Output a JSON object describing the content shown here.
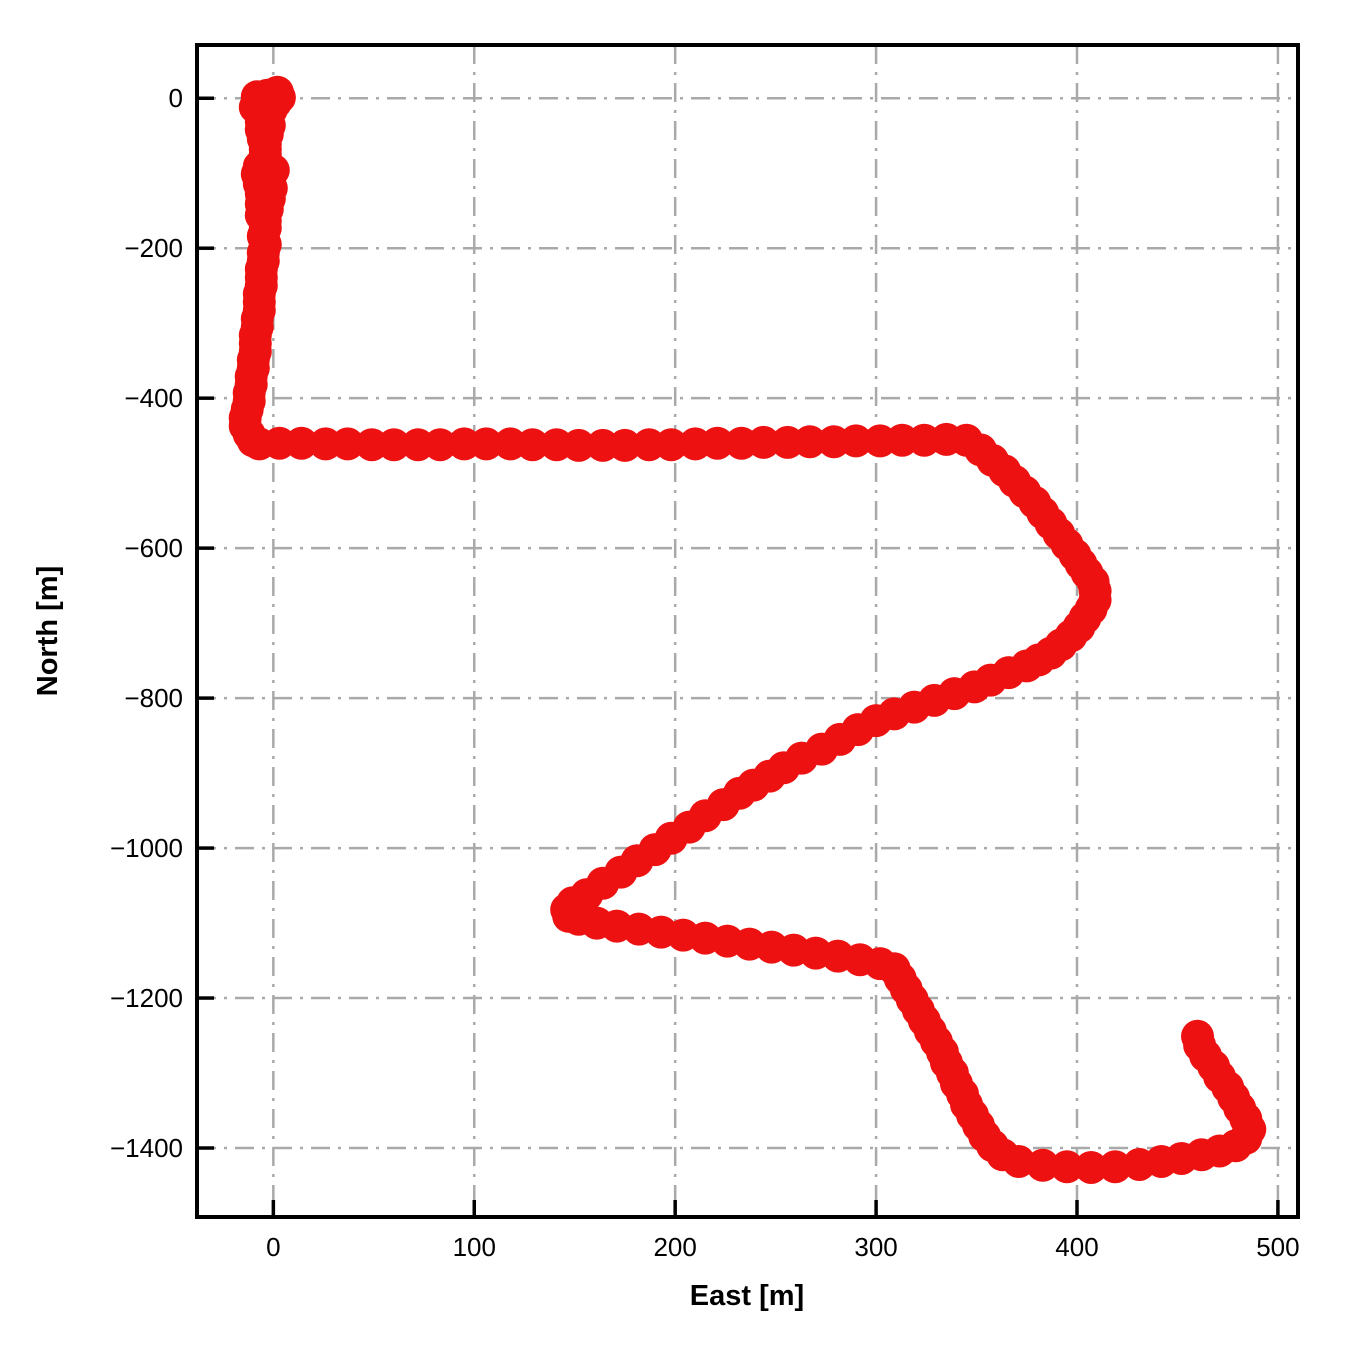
{
  "figure": {
    "background": "#ffffff"
  },
  "chart_data": {
    "type": "scatter",
    "title": "",
    "xlabel": "East [m]",
    "ylabel": "North [m]",
    "x_ticks": [
      0,
      100,
      200,
      300,
      400,
      500
    ],
    "y_ticks": [
      0,
      -200,
      -400,
      -600,
      -800,
      -1000,
      -1200,
      -1400
    ],
    "xlim": [
      -38,
      510
    ],
    "ylim": [
      -1492,
      71
    ],
    "grid": "dash-dot",
    "legend": "none",
    "marker_shape": "circle",
    "marker_size_px": 33,
    "marker_color": "#ee1111",
    "grid_color": "#a9a9a9",
    "axis_color": "#000000",
    "points": [
      [
        2,
        8
      ],
      [
        -3,
        4
      ],
      [
        -8,
        2
      ],
      [
        3,
        1
      ],
      [
        -2,
        0
      ],
      [
        -7,
        -3
      ],
      [
        1,
        -6
      ],
      [
        -5,
        -9
      ],
      [
        -9,
        -12
      ],
      [
        -1,
        -15
      ],
      [
        -6,
        -19
      ],
      [
        -3,
        -25
      ],
      [
        -6,
        -31
      ],
      [
        -2,
        -36
      ],
      [
        -6,
        -42
      ],
      [
        -3,
        -48
      ],
      [
        -5,
        -54
      ],
      [
        -4,
        -61
      ],
      [
        -4,
        -68
      ],
      [
        -4,
        -75
      ],
      [
        -4,
        -83
      ],
      [
        -7,
        -91
      ],
      [
        0,
        -96
      ],
      [
        -8,
        -101
      ],
      [
        -2,
        -107
      ],
      [
        -7,
        -114
      ],
      [
        -1,
        -120
      ],
      [
        -6,
        -127
      ],
      [
        -2,
        -134
      ],
      [
        -6,
        -141
      ],
      [
        -3,
        -148
      ],
      [
        -6,
        -156
      ],
      [
        -4,
        -163
      ],
      [
        -4,
        -173
      ],
      [
        -5,
        -184
      ],
      [
        -4,
        -195
      ],
      [
        -5,
        -206
      ],
      [
        -5,
        -217
      ],
      [
        -6,
        -228
      ],
      [
        -6,
        -239
      ],
      [
        -6,
        -250
      ],
      [
        -7,
        -261
      ],
      [
        -7,
        -272
      ],
      [
        -7,
        -283
      ],
      [
        -8,
        -294
      ],
      [
        -8,
        -305
      ],
      [
        -9,
        -316
      ],
      [
        -9,
        -327
      ],
      [
        -9,
        -338
      ],
      [
        -10,
        -349
      ],
      [
        -10,
        -360
      ],
      [
        -11,
        -371
      ],
      [
        -11,
        -382
      ],
      [
        -12,
        -393
      ],
      [
        -12,
        -404
      ],
      [
        -13,
        -415
      ],
      [
        -14,
        -426
      ],
      [
        -14,
        -437
      ],
      [
        -12,
        -448
      ],
      [
        -10,
        -457
      ],
      [
        -7,
        -461
      ],
      [
        3,
        -460
      ],
      [
        14,
        -460
      ],
      [
        26,
        -461
      ],
      [
        37,
        -461
      ],
      [
        49,
        -462
      ],
      [
        60,
        -462
      ],
      [
        72,
        -462
      ],
      [
        83,
        -462
      ],
      [
        95,
        -461
      ],
      [
        106,
        -461
      ],
      [
        118,
        -461
      ],
      [
        129,
        -462
      ],
      [
        141,
        -462
      ],
      [
        152,
        -463
      ],
      [
        164,
        -463
      ],
      [
        175,
        -463
      ],
      [
        187,
        -462
      ],
      [
        198,
        -462
      ],
      [
        210,
        -461
      ],
      [
        221,
        -460
      ],
      [
        233,
        -460
      ],
      [
        244,
        -459
      ],
      [
        256,
        -459
      ],
      [
        267,
        -458
      ],
      [
        279,
        -458
      ],
      [
        290,
        -457
      ],
      [
        302,
        -457
      ],
      [
        313,
        -456
      ],
      [
        324,
        -456
      ],
      [
        335,
        -455
      ],
      [
        345,
        -456
      ],
      [
        352,
        -469
      ],
      [
        358,
        -483
      ],
      [
        364,
        -497
      ],
      [
        369,
        -511
      ],
      [
        374,
        -525
      ],
      [
        379,
        -539
      ],
      [
        383,
        -553
      ],
      [
        387,
        -567
      ],
      [
        391,
        -581
      ],
      [
        395,
        -595
      ],
      [
        399,
        -609
      ],
      [
        402,
        -621
      ],
      [
        405,
        -633
      ],
      [
        408,
        -645
      ],
      [
        409,
        -657
      ],
      [
        409,
        -669
      ],
      [
        407,
        -681
      ],
      [
        404,
        -693
      ],
      [
        401,
        -705
      ],
      [
        397,
        -717
      ],
      [
        392,
        -729
      ],
      [
        387,
        -740
      ],
      [
        381,
        -749
      ],
      [
        375,
        -757
      ],
      [
        366,
        -766
      ],
      [
        357,
        -776
      ],
      [
        349,
        -785
      ],
      [
        339,
        -794
      ],
      [
        329,
        -803
      ],
      [
        319,
        -812
      ],
      [
        309,
        -821
      ],
      [
        300,
        -830
      ],
      [
        291,
        -842
      ],
      [
        282,
        -855
      ],
      [
        273,
        -868
      ],
      [
        263,
        -880
      ],
      [
        254,
        -893
      ],
      [
        247,
        -904
      ],
      [
        239,
        -916
      ],
      [
        232,
        -927
      ],
      [
        224,
        -942
      ],
      [
        215,
        -957
      ],
      [
        207,
        -972
      ],
      [
        198,
        -987
      ],
      [
        190,
        -1002
      ],
      [
        181,
        -1017
      ],
      [
        173,
        -1032
      ],
      [
        164,
        -1047
      ],
      [
        156,
        -1062
      ],
      [
        149,
        -1073
      ],
      [
        146,
        -1082
      ],
      [
        147,
        -1091
      ],
      [
        152,
        -1095
      ],
      [
        161,
        -1100
      ],
      [
        171,
        -1104
      ],
      [
        182,
        -1108
      ],
      [
        193,
        -1112
      ],
      [
        204,
        -1116
      ],
      [
        215,
        -1120
      ],
      [
        226,
        -1124
      ],
      [
        237,
        -1128
      ],
      [
        248,
        -1132
      ],
      [
        259,
        -1136
      ],
      [
        270,
        -1140
      ],
      [
        281,
        -1144
      ],
      [
        292,
        -1149
      ],
      [
        302,
        -1154
      ],
      [
        309,
        -1161
      ],
      [
        312,
        -1174
      ],
      [
        315,
        -1188
      ],
      [
        318,
        -1202
      ],
      [
        321,
        -1216
      ],
      [
        324,
        -1230
      ],
      [
        327,
        -1244
      ],
      [
        330,
        -1258
      ],
      [
        333,
        -1272
      ],
      [
        335,
        -1286
      ],
      [
        338,
        -1300
      ],
      [
        340,
        -1314
      ],
      [
        343,
        -1328
      ],
      [
        345,
        -1342
      ],
      [
        348,
        -1356
      ],
      [
        351,
        -1370
      ],
      [
        354,
        -1384
      ],
      [
        358,
        -1397
      ],
      [
        363,
        -1409
      ],
      [
        371,
        -1418
      ],
      [
        383,
        -1423
      ],
      [
        395,
        -1425
      ],
      [
        407,
        -1426
      ],
      [
        419,
        -1425
      ],
      [
        431,
        -1422
      ],
      [
        442,
        -1418
      ],
      [
        452,
        -1414
      ],
      [
        462,
        -1409
      ],
      [
        471,
        -1404
      ],
      [
        479,
        -1397
      ],
      [
        484,
        -1387
      ],
      [
        486,
        -1375
      ],
      [
        484,
        -1361
      ],
      [
        481,
        -1347
      ],
      [
        478,
        -1333
      ],
      [
        475,
        -1319
      ],
      [
        471,
        -1305
      ],
      [
        468,
        -1291
      ],
      [
        464,
        -1277
      ],
      [
        461,
        -1263
      ],
      [
        460,
        -1251
      ]
    ]
  }
}
